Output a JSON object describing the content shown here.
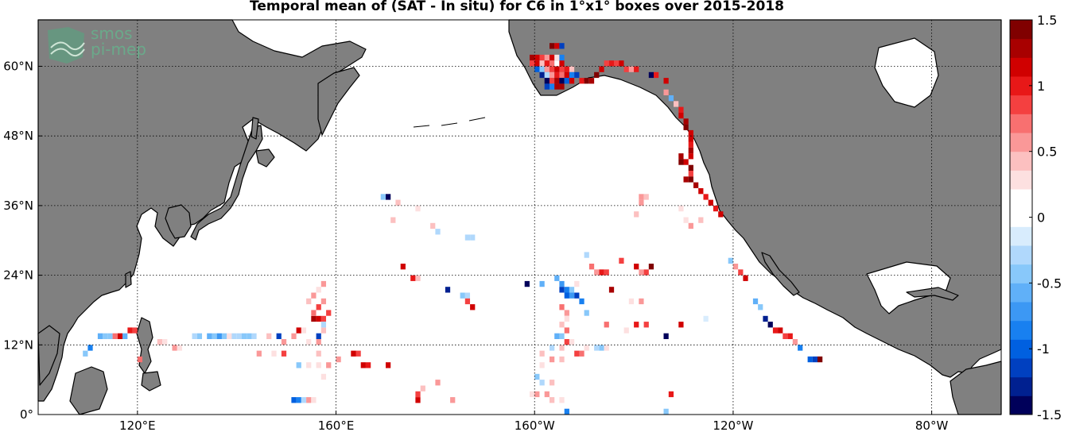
{
  "title": "Temporal mean of (SAT - In situ) for C6 in 1°x1° boxes over 2015-2018",
  "logo": {
    "line1": "smos",
    "line2": "pi-mep"
  },
  "map": {
    "lat_ticks": [
      {
        "value": 60,
        "label": "60°N"
      },
      {
        "value": 48,
        "label": "48°N"
      },
      {
        "value": 36,
        "label": "36°N"
      },
      {
        "value": 24,
        "label": "24°N"
      },
      {
        "value": 12,
        "label": "12°N"
      },
      {
        "value": 0,
        "label": "0°"
      }
    ],
    "lon_ticks": [
      {
        "value": 120,
        "label": "120°E"
      },
      {
        "value": 160,
        "label": "160°E"
      },
      {
        "value": 200,
        "label": "160°W"
      },
      {
        "value": 240,
        "label": "120°W"
      },
      {
        "value": 280,
        "label": "80°W"
      }
    ],
    "lon_range": [
      100,
      294
    ],
    "lat_range": [
      0,
      68
    ],
    "land_color": "#808080",
    "ocean_color": "#ffffff"
  },
  "colorbar": {
    "min": -1.5,
    "max": 1.5,
    "ticks": [
      {
        "value": 1.5,
        "label": "1.5"
      },
      {
        "value": 1,
        "label": "1"
      },
      {
        "value": 0.5,
        "label": "0.5"
      },
      {
        "value": 0,
        "label": "0"
      },
      {
        "value": -0.5,
        "label": "-0.5"
      },
      {
        "value": -1,
        "label": "-1"
      },
      {
        "value": -1.5,
        "label": "-1.5"
      }
    ],
    "colors": [
      "#00005a",
      "#002090",
      "#0040c0",
      "#0060e0",
      "#1880f0",
      "#3c98f4",
      "#60b0f8",
      "#88c8fa",
      "#b0d8fc",
      "#d8ecfd",
      "#ffffff",
      "#ffffff",
      "#fde0e0",
      "#fcc0c0",
      "#fa9898",
      "#f87070",
      "#f44040",
      "#e81818",
      "#d00000",
      "#a80000",
      "#800000"
    ]
  },
  "cells": [
    [
      203,
      63,
      1.4
    ],
    [
      204,
      63,
      1.2
    ],
    [
      205,
      63,
      -1.2
    ],
    [
      199,
      61,
      1.3
    ],
    [
      200,
      61,
      1.1
    ],
    [
      201,
      61,
      0.8
    ],
    [
      202,
      61,
      0.6
    ],
    [
      203,
      61,
      1.2
    ],
    [
      204,
      61,
      0.3
    ],
    [
      205,
      61,
      -0.9
    ],
    [
      199,
      60,
      0.9
    ],
    [
      200,
      60,
      1.2
    ],
    [
      201,
      60,
      0.4
    ],
    [
      202,
      60,
      1.0
    ],
    [
      203,
      60,
      0.7
    ],
    [
      204,
      60,
      0.2
    ],
    [
      205,
      60,
      1.1
    ],
    [
      200,
      59,
      -1.0
    ],
    [
      201,
      59,
      -0.5
    ],
    [
      202,
      59,
      0.6
    ],
    [
      203,
      59,
      0.9
    ],
    [
      204,
      59,
      1.2
    ],
    [
      205,
      59,
      0.8
    ],
    [
      206,
      59,
      1.0
    ],
    [
      207,
      59,
      0.4
    ],
    [
      201,
      58,
      -1.3
    ],
    [
      202,
      58,
      -0.3
    ],
    [
      203,
      58,
      0.5
    ],
    [
      204,
      58,
      1.0
    ],
    [
      205,
      58,
      0.7
    ],
    [
      206,
      58,
      1.1
    ],
    [
      207,
      58,
      -0.8
    ],
    [
      208,
      58,
      -1.1
    ],
    [
      202,
      57,
      -1.4
    ],
    [
      203,
      57,
      0.9
    ],
    [
      204,
      57,
      1.3
    ],
    [
      205,
      57,
      -1.5
    ],
    [
      206,
      57,
      -1.0
    ],
    [
      207,
      57,
      1.2
    ],
    [
      209,
      57,
      1.0
    ],
    [
      210,
      57,
      1.4
    ],
    [
      202,
      56,
      -1.1
    ],
    [
      203,
      56,
      -0.9
    ],
    [
      204,
      56,
      1.3
    ],
    [
      205,
      56,
      1.3
    ],
    [
      211,
      57,
      1.3
    ],
    [
      212,
      58,
      1.4
    ],
    [
      213,
      59,
      1.1
    ],
    [
      214,
      60,
      0.9
    ],
    [
      215,
      60,
      1.0
    ],
    [
      216,
      60,
      0.8
    ],
    [
      217,
      60,
      1.1
    ],
    [
      218,
      59,
      0.9
    ],
    [
      219,
      59,
      0.5
    ],
    [
      220,
      59,
      1.0
    ],
    [
      223,
      58,
      -1.4
    ],
    [
      224,
      58,
      1.0
    ],
    [
      226,
      57,
      1.2
    ],
    [
      226,
      55,
      0.6
    ],
    [
      227,
      54,
      -0.6
    ],
    [
      228,
      53,
      0.4
    ],
    [
      229,
      52,
      1.0
    ],
    [
      229,
      51,
      1.2
    ],
    [
      230,
      50,
      1.3
    ],
    [
      230,
      49,
      1.4
    ],
    [
      231,
      48,
      1.1
    ],
    [
      231,
      47,
      1.2
    ],
    [
      231,
      46,
      1.0
    ],
    [
      231,
      45,
      1.3
    ],
    [
      231,
      44,
      1.1
    ],
    [
      230,
      43,
      1.2
    ],
    [
      231,
      42,
      1.4
    ],
    [
      231,
      41,
      0.8
    ],
    [
      230,
      40,
      1.3
    ],
    [
      231,
      40,
      1.4
    ],
    [
      232,
      39,
      1.3
    ],
    [
      233,
      38,
      1.2
    ],
    [
      234,
      37,
      1.0
    ],
    [
      235,
      36,
      1.2
    ],
    [
      236,
      35,
      1.0
    ],
    [
      237,
      34,
      1.1
    ],
    [
      229,
      44,
      1.3
    ],
    [
      229,
      43,
      1.4
    ],
    [
      233,
      33,
      0.4
    ],
    [
      221,
      37,
      0.5
    ],
    [
      222,
      37,
      0.4
    ],
    [
      221,
      36,
      0.6
    ],
    [
      220,
      34,
      0.4
    ],
    [
      229,
      35,
      0.3
    ],
    [
      230,
      33,
      0.3
    ],
    [
      231,
      32,
      0.6
    ],
    [
      239,
      26,
      -0.5
    ],
    [
      240,
      25,
      0.6
    ],
    [
      241,
      24,
      0.9
    ],
    [
      242,
      23,
      1.2
    ],
    [
      244,
      19,
      -0.6
    ],
    [
      245,
      18,
      -0.4
    ],
    [
      246,
      16,
      -1.3
    ],
    [
      247,
      15,
      -1.4
    ],
    [
      248,
      14,
      1.0
    ],
    [
      249,
      14,
      1.1
    ],
    [
      250,
      13,
      0.8
    ],
    [
      251,
      13,
      1.0
    ],
    [
      252,
      12,
      0.5
    ],
    [
      253,
      11,
      -0.8
    ],
    [
      255,
      9,
      -1.0
    ],
    [
      256,
      9,
      -1.2
    ],
    [
      257,
      9,
      1.4
    ],
    [
      210,
      27,
      -0.3
    ],
    [
      211,
      25,
      0.7
    ],
    [
      212,
      24,
      0.6
    ],
    [
      213,
      24,
      1.0
    ],
    [
      214,
      24,
      0.8
    ],
    [
      217,
      26,
      0.9
    ],
    [
      220,
      25,
      1.1
    ],
    [
      221,
      24,
      0.5
    ],
    [
      222,
      24,
      0.9
    ],
    [
      223,
      25,
      1.4
    ],
    [
      215,
      21,
      1.3
    ],
    [
      219,
      19,
      0.3
    ],
    [
      221,
      19,
      0.5
    ],
    [
      226,
      13,
      -1.4
    ],
    [
      229,
      15,
      1.2
    ],
    [
      233,
      14,
      0.2
    ],
    [
      234,
      16,
      -0.2
    ],
    [
      198,
      22,
      -1.4
    ],
    [
      201,
      22,
      -0.6
    ],
    [
      204,
      23,
      -0.6
    ],
    [
      205,
      22,
      -0.7
    ],
    [
      205,
      21,
      -1.1
    ],
    [
      206,
      21,
      -0.8
    ],
    [
      207,
      21,
      -0.4
    ],
    [
      208,
      22,
      0.3
    ],
    [
      206,
      20,
      -1.0
    ],
    [
      207,
      20,
      -0.7
    ],
    [
      208,
      20,
      -1.2
    ],
    [
      209,
      19,
      -0.8
    ],
    [
      210,
      17,
      -0.5
    ],
    [
      205,
      18,
      0.7
    ],
    [
      206,
      17,
      0.5
    ],
    [
      206,
      16,
      0.3
    ],
    [
      205,
      15,
      0.4
    ],
    [
      206,
      14,
      0.7
    ],
    [
      204,
      13,
      -0.6
    ],
    [
      205,
      13,
      -0.5
    ],
    [
      206,
      12,
      0.9
    ],
    [
      207,
      12,
      0.3
    ],
    [
      203,
      11,
      -0.3
    ],
    [
      205,
      11,
      0.4
    ],
    [
      201,
      10,
      0.4
    ],
    [
      201,
      8,
      0.3
    ],
    [
      203,
      9,
      0.5
    ],
    [
      205,
      9,
      0.4
    ],
    [
      200,
      6,
      -0.4
    ],
    [
      201,
      5,
      -0.3
    ],
    [
      203,
      5,
      0.4
    ],
    [
      199,
      3,
      0.3
    ],
    [
      200,
      3,
      0.6
    ],
    [
      202,
      3,
      0.5
    ],
    [
      203,
      2,
      0.4
    ],
    [
      205,
      2,
      0.3
    ],
    [
      206,
      0,
      -0.9
    ],
    [
      210,
      11,
      0.3
    ],
    [
      212,
      11,
      -0.3
    ],
    [
      213,
      11,
      -0.4
    ],
    [
      214,
      11,
      0.3
    ],
    [
      208,
      10,
      0.9
    ],
    [
      209,
      10,
      0.7
    ],
    [
      220,
      15,
      1.0
    ],
    [
      222,
      15,
      0.9
    ],
    [
      214,
      15,
      0.7
    ],
    [
      218,
      14,
      0.3
    ],
    [
      227,
      3,
      1.0
    ],
    [
      226,
      0,
      -0.5
    ],
    [
      169,
      37,
      -0.4
    ],
    [
      170,
      37,
      -1.4
    ],
    [
      172,
      36,
      0.4
    ],
    [
      171,
      33,
      0.4
    ],
    [
      176,
      35,
      0.3
    ],
    [
      179,
      32,
      0.4
    ],
    [
      180,
      31,
      -0.3
    ],
    [
      173,
      25,
      1.2
    ],
    [
      175,
      23,
      1.0
    ],
    [
      176,
      23,
      0.4
    ],
    [
      186,
      30,
      -0.3
    ],
    [
      187,
      30,
      -0.3
    ],
    [
      182,
      21,
      -1.3
    ],
    [
      185,
      20,
      -0.4
    ],
    [
      186,
      20,
      -0.3
    ],
    [
      186,
      19,
      0.9
    ],
    [
      187,
      18,
      1.2
    ],
    [
      165,
      8,
      1.1
    ],
    [
      166,
      8,
      1.0
    ],
    [
      170,
      8,
      1.2
    ],
    [
      163,
      10,
      1.1
    ],
    [
      164,
      10,
      0.9
    ],
    [
      156,
      8,
      0.3
    ],
    [
      156,
      10,
      0.4
    ],
    [
      158,
      8,
      0.6
    ],
    [
      160,
      9,
      0.6
    ],
    [
      177,
      4,
      0.4
    ],
    [
      180,
      5,
      0.5
    ],
    [
      183,
      2,
      0.5
    ],
    [
      151,
      2,
      -1.0
    ],
    [
      152,
      2,
      -0.8
    ],
    [
      153,
      2,
      -0.3
    ],
    [
      154,
      2,
      0.6
    ],
    [
      155,
      2,
      0.3
    ],
    [
      176,
      2,
      1.1
    ],
    [
      176,
      3,
      0.8
    ],
    [
      144,
      10,
      0.5
    ],
    [
      147,
      10,
      0.3
    ],
    [
      149,
      10,
      0.8
    ],
    [
      152,
      8,
      -0.4
    ],
    [
      154,
      8,
      0.3
    ],
    [
      157,
      6,
      0.3
    ],
    [
      112,
      13,
      -0.6
    ],
    [
      113,
      13,
      -0.4
    ],
    [
      114,
      13,
      -0.5
    ],
    [
      115,
      13,
      0.7
    ],
    [
      116,
      13,
      1.1
    ],
    [
      117,
      13,
      -0.6
    ],
    [
      118,
      14,
      1.0
    ],
    [
      119,
      14,
      0.8
    ],
    [
      110,
      11,
      -0.8
    ],
    [
      109,
      10,
      -0.5
    ],
    [
      131,
      13,
      -0.3
    ],
    [
      132,
      13,
      -0.4
    ],
    [
      134,
      13,
      -0.6
    ],
    [
      135,
      13,
      -0.5
    ],
    [
      136,
      13,
      -0.7
    ],
    [
      137,
      13,
      -0.5
    ],
    [
      138,
      13,
      0.3
    ],
    [
      139,
      13,
      -0.3
    ],
    [
      140,
      13,
      -0.3
    ],
    [
      141,
      13,
      -0.4
    ],
    [
      142,
      13,
      -0.4
    ],
    [
      143,
      13,
      -0.3
    ],
    [
      146,
      13,
      0.4
    ],
    [
      148,
      13,
      -1.1
    ],
    [
      151,
      13,
      0.5
    ],
    [
      156,
      13,
      -1.2
    ],
    [
      152,
      14,
      1.1
    ],
    [
      153,
      14,
      0.3
    ],
    [
      155,
      16,
      1.3
    ],
    [
      156,
      16,
      1.2
    ],
    [
      157,
      16,
      0.8
    ],
    [
      157,
      14,
      0.4
    ],
    [
      156,
      12,
      0.5
    ],
    [
      154,
      12,
      0.3
    ],
    [
      154,
      19,
      0.4
    ],
    [
      155,
      20,
      0.5
    ],
    [
      156,
      21,
      0.3
    ],
    [
      157,
      19,
      0.6
    ],
    [
      157,
      22,
      0.5
    ],
    [
      158,
      17,
      0.8
    ],
    [
      155,
      17,
      0.7
    ],
    [
      156,
      18,
      0.9
    ],
    [
      157,
      15,
      -0.3
    ],
    [
      149,
      12,
      0.6
    ],
    [
      124,
      12,
      0.4
    ],
    [
      125,
      12,
      0.3
    ],
    [
      127,
      11,
      0.5
    ],
    [
      128,
      11,
      0.3
    ],
    [
      120,
      9,
      0.7
    ]
  ]
}
